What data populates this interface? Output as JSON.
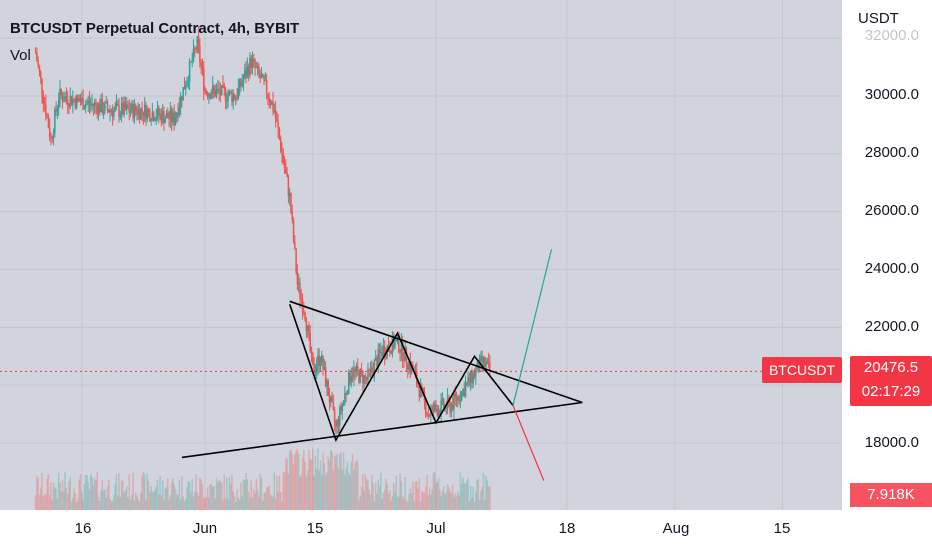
{
  "header": {
    "title": "BTCUSDT Perpetual Contract, 4h, BYBIT",
    "vol_label": "Vol"
  },
  "axis": {
    "unit": "USDT",
    "price_ticks": [
      "32000.0",
      "30000.0",
      "28000.0",
      "26000.0",
      "24000.0",
      "22000.0",
      "18000.0"
    ],
    "time_ticks": [
      "16",
      "Jun",
      "15",
      "Jul",
      "18",
      "Aug",
      "15"
    ]
  },
  "badges": {
    "symbol": "BTCUSDT",
    "price": "20476.5",
    "countdown": "02:17:29",
    "volume": "7.918K"
  },
  "colors": {
    "up": "#26a69a",
    "down": "#ef5350",
    "badge": "#f23645",
    "pattern_line": "#000000",
    "bull_projection": "#26a69a",
    "bear_projection": "#f23645"
  },
  "chart_data": {
    "type": "candlestick",
    "symbol": "BTCUSDT",
    "timeframe": "4h",
    "exchange": "BYBIT",
    "ylim": [
      17000,
      33500
    ],
    "y_scale": "linear",
    "last_price": 20476.5,
    "price_path": [
      [
        "May 10",
        31500
      ],
      [
        "May 12",
        28500
      ],
      [
        "May 13",
        30000
      ],
      [
        "May 16",
        29800
      ],
      [
        "May 20",
        29500
      ],
      [
        "May 24",
        29500
      ],
      [
        "May 28",
        29200
      ],
      [
        "May 31",
        31800
      ],
      [
        "Jun 1",
        30200
      ],
      [
        "Jun 5",
        30000
      ],
      [
        "Jun 7",
        31200
      ],
      [
        "Jun 9",
        30200
      ],
      [
        "Jun 10",
        29500
      ],
      [
        "Jun 11",
        28000
      ],
      [
        "Jun 12",
        26500
      ],
      [
        "Jun 13",
        23500
      ],
      [
        "Jun 14",
        22500
      ],
      [
        "Jun 15",
        20500
      ],
      [
        "Jun 16",
        21000
      ],
      [
        "Jun 18",
        18500
      ],
      [
        "Jun 20",
        20500
      ],
      [
        "Jun 22",
        20200
      ],
      [
        "Jun 24",
        21200
      ],
      [
        "Jun 26",
        21500
      ],
      [
        "Jun 28",
        20500
      ],
      [
        "Jun 30",
        19000
      ],
      [
        "Jul 1",
        19200
      ],
      [
        "Jul 3",
        19300
      ],
      [
        "Jul 5",
        20000
      ],
      [
        "Jul 7",
        20800
      ],
      [
        "Jul 8",
        20476.5
      ]
    ],
    "pattern": "symmetrical triangle",
    "trendlines": {
      "upper": [
        [
          "Jun 12",
          22900
        ],
        [
          "Jul 20",
          19400
        ]
      ],
      "lower": [
        [
          "May 29",
          17500
        ],
        [
          "Jul 20",
          19400
        ]
      ],
      "zigzag": [
        [
          "Jun 12",
          22800
        ],
        [
          "Jun 18",
          18100
        ],
        [
          "Jun 26",
          21800
        ],
        [
          "Jul 1",
          18700
        ],
        [
          "Jul 6",
          21000
        ],
        [
          "Jul 11",
          19300
        ]
      ],
      "bullish_projection": [
        [
          "Jul 11",
          19300
        ],
        [
          "Jul 16",
          24700
        ]
      ],
      "bearish_projection": [
        [
          "Jul 11",
          19300
        ],
        [
          "Jul 15",
          16700
        ]
      ]
    }
  }
}
